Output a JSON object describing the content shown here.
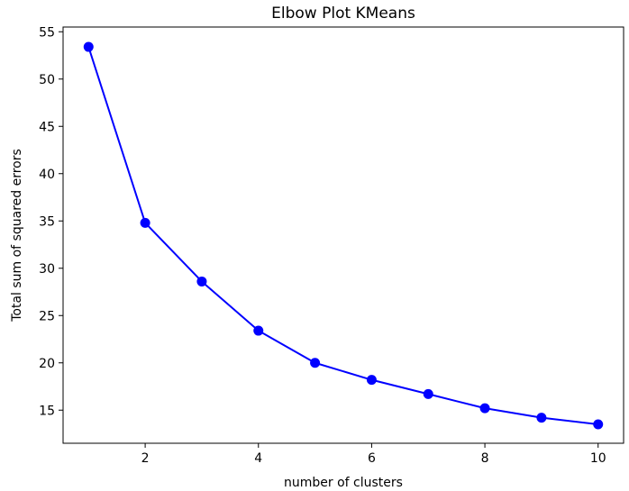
{
  "chart_data": {
    "type": "line",
    "title": "Elbow Plot KMeans",
    "xlabel": "number of clusters",
    "ylabel": "Total sum of squared errors",
    "x": [
      1,
      2,
      3,
      4,
      5,
      6,
      7,
      8,
      9,
      10
    ],
    "series": [
      {
        "values": [
          53.4,
          34.8,
          28.6,
          23.4,
          20.0,
          18.2,
          16.7,
          15.2,
          14.2,
          13.5
        ],
        "color": "#0000ff",
        "marker": "circle"
      }
    ],
    "xlim": [
      0.55,
      10.45
    ],
    "ylim": [
      11.5,
      55.5
    ],
    "xticks": [
      2,
      4,
      6,
      8,
      10
    ],
    "yticks": [
      15,
      20,
      25,
      30,
      35,
      40,
      45,
      50,
      55
    ],
    "grid": false,
    "legend": false
  }
}
